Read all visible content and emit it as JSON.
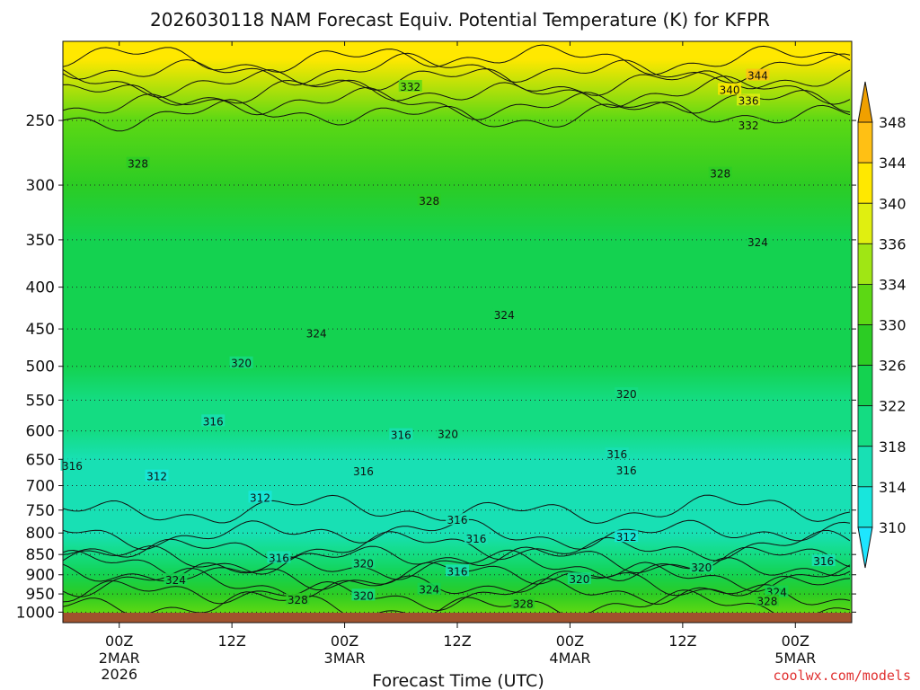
{
  "chart_data": {
    "type": "heatmap",
    "title": "2026030118 NAM Forecast Equiv. Potential Temperature (K) for KFPR",
    "xlabel": "Forecast Time (UTC)",
    "ylabel": "",
    "y_scale": "log",
    "y_reversed": true,
    "y_ticks": [
      250,
      300,
      350,
      400,
      450,
      500,
      550,
      600,
      650,
      700,
      750,
      800,
      850,
      900,
      950,
      1000
    ],
    "ylim": [
      1030,
      200
    ],
    "x_ticks": [
      {
        "hour": 0,
        "label": "00Z",
        "date": "2MAR",
        "year": "2026"
      },
      {
        "hour": 12,
        "label": "12Z",
        "date": "",
        "year": ""
      },
      {
        "hour": 24,
        "label": "00Z",
        "date": "3MAR",
        "year": ""
      },
      {
        "hour": 36,
        "label": "12Z",
        "date": "",
        "year": ""
      },
      {
        "hour": 48,
        "label": "00Z",
        "date": "4MAR",
        "year": ""
      },
      {
        "hour": 60,
        "label": "12Z",
        "date": "",
        "year": ""
      },
      {
        "hour": 72,
        "label": "00Z",
        "date": "5MAR",
        "year": ""
      }
    ],
    "xlim": [
      -6,
      78
    ],
    "colorbar": {
      "levels": [
        310,
        314,
        318,
        322,
        326,
        330,
        334,
        336,
        340,
        344,
        348
      ],
      "colors": [
        "#1ee6ff",
        "#18e6dc",
        "#18e0b4",
        "#14dc82",
        "#14d250",
        "#2ccc24",
        "#5cd814",
        "#a0e614",
        "#e0ef10",
        "#ffe800",
        "#ffc014",
        "#f0a000"
      ]
    },
    "profile": [
      {
        "p": 1000,
        "theta_e": 331
      },
      {
        "p": 950,
        "theta_e": 328
      },
      {
        "p": 900,
        "theta_e": 324
      },
      {
        "p": 850,
        "theta_e": 319
      },
      {
        "p": 800,
        "theta_e": 316
      },
      {
        "p": 750,
        "theta_e": 314
      },
      {
        "p": 700,
        "theta_e": 314
      },
      {
        "p": 650,
        "theta_e": 316
      },
      {
        "p": 600,
        "theta_e": 318
      },
      {
        "p": 550,
        "theta_e": 320
      },
      {
        "p": 500,
        "theta_e": 322
      },
      {
        "p": 450,
        "theta_e": 323
      },
      {
        "p": 400,
        "theta_e": 324
      },
      {
        "p": 350,
        "theta_e": 325
      },
      {
        "p": 300,
        "theta_e": 327
      },
      {
        "p": 250,
        "theta_e": 331
      },
      {
        "p": 210,
        "theta_e": 342
      }
    ],
    "contour_labels": [
      {
        "text": "344",
        "hour": 68,
        "p": 220
      },
      {
        "text": "340",
        "hour": 65,
        "p": 229
      },
      {
        "text": "336",
        "hour": 67,
        "p": 236
      },
      {
        "text": "332",
        "hour": 31,
        "p": 227
      },
      {
        "text": "332",
        "hour": 67,
        "p": 253
      },
      {
        "text": "328",
        "hour": 2,
        "p": 282
      },
      {
        "text": "328",
        "hour": 33,
        "p": 313
      },
      {
        "text": "328",
        "hour": 64,
        "p": 290
      },
      {
        "text": "324",
        "hour": 68,
        "p": 352
      },
      {
        "text": "324",
        "hour": 21,
        "p": 455
      },
      {
        "text": "324",
        "hour": 41,
        "p": 432
      },
      {
        "text": "320",
        "hour": 13,
        "p": 495
      },
      {
        "text": "320",
        "hour": 35,
        "p": 604
      },
      {
        "text": "320",
        "hour": 54,
        "p": 540
      },
      {
        "text": "316",
        "hour": 10,
        "p": 583
      },
      {
        "text": "316",
        "hour": 30,
        "p": 606
      },
      {
        "text": "316",
        "hour": 26,
        "p": 671
      },
      {
        "text": "316",
        "hour": 53,
        "p": 640
      },
      {
        "text": "316",
        "hour": 54,
        "p": 670
      },
      {
        "text": "316",
        "hour": 36,
        "p": 770
      },
      {
        "text": "316",
        "hour": 38,
        "p": 812
      },
      {
        "text": "316",
        "hour": 17,
        "p": 857
      },
      {
        "text": "316",
        "hour": 36,
        "p": 890
      },
      {
        "text": "316",
        "hour": 75,
        "p": 865
      },
      {
        "text": "316",
        "hour": -5,
        "p": 661
      },
      {
        "text": "312",
        "hour": 4,
        "p": 681
      },
      {
        "text": "312",
        "hour": 15,
        "p": 723
      },
      {
        "text": "312",
        "hour": 54,
        "p": 808
      },
      {
        "text": "320",
        "hour": 26,
        "p": 870
      },
      {
        "text": "320",
        "hour": 26,
        "p": 953
      },
      {
        "text": "320",
        "hour": 49,
        "p": 910
      },
      {
        "text": "320",
        "hour": 62,
        "p": 880
      },
      {
        "text": "324",
        "hour": 6,
        "p": 912
      },
      {
        "text": "324",
        "hour": 33,
        "p": 937
      },
      {
        "text": "324",
        "hour": 70,
        "p": 944
      },
      {
        "text": "328",
        "hour": 19,
        "p": 964
      },
      {
        "text": "328",
        "hour": 43,
        "p": 975
      },
      {
        "text": "328",
        "hour": 69,
        "p": 968
      }
    ]
  },
  "credit": "coolwx.com/models"
}
